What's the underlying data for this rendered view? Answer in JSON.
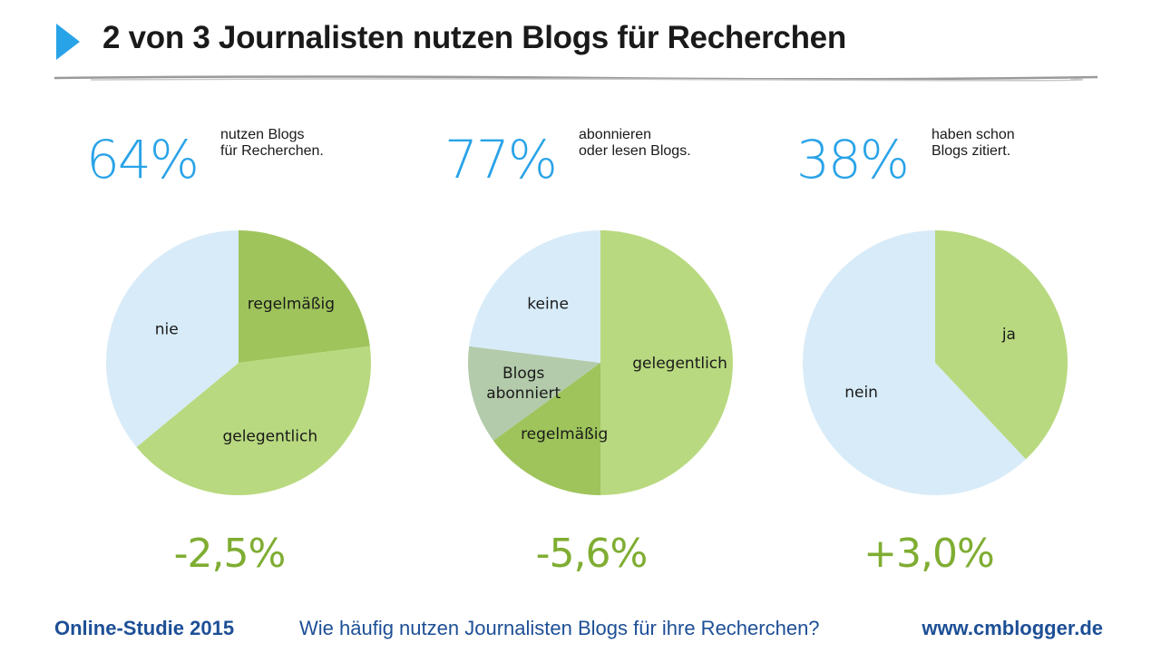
{
  "title": "2 von 3 Journalisten nutzen Blogs für Recherchen",
  "colors": {
    "accent": "#29a3e8",
    "delta": "#7fad32",
    "footer": "#1d4f96",
    "green_light": "#b8d97f",
    "green_dark": "#9ec45b",
    "sage": "#b3cbab",
    "light_blue": "#d8ebf8"
  },
  "stats": [
    {
      "percent": "64%",
      "line1": "nutzen Blogs",
      "line2": "für Recherchen.",
      "delta": "-2,5%"
    },
    {
      "percent": "77%",
      "line1": "abonnieren",
      "line2": "oder lesen Blogs.",
      "delta": "-5,6%"
    },
    {
      "percent": "38%",
      "line1": "haben schon",
      "line2": "Blogs zitiert.",
      "delta": "+3,0%"
    }
  ],
  "chart_data": [
    {
      "type": "pie",
      "slices": [
        {
          "label": "regelmäßig",
          "value": 23,
          "color": "#9ec45b"
        },
        {
          "label": "gelegentlich",
          "value": 41,
          "color": "#b8d97f"
        },
        {
          "label": "nie",
          "value": 36,
          "color": "#d8ebf8"
        }
      ]
    },
    {
      "type": "pie",
      "slices": [
        {
          "label": "gelegentlich",
          "value": 50,
          "color": "#b8d97f"
        },
        {
          "label": "regelmäßig",
          "value": 15,
          "color": "#9ec45b"
        },
        {
          "label": "Blogs abonniert",
          "value": 12,
          "color": "#b3cbab"
        },
        {
          "label": "keine",
          "value": 23,
          "color": "#d8ebf8"
        }
      ]
    },
    {
      "type": "pie",
      "slices": [
        {
          "label": "ja",
          "value": 38,
          "color": "#b8d97f"
        },
        {
          "label": "nein",
          "value": 62,
          "color": "#d8ebf8"
        }
      ]
    }
  ],
  "footer": {
    "left": "Online-Studie 2015",
    "center": "Wie häufig nutzen Journalisten Blogs für ihre Recherchen?",
    "right": "www.cmblogger.de"
  }
}
